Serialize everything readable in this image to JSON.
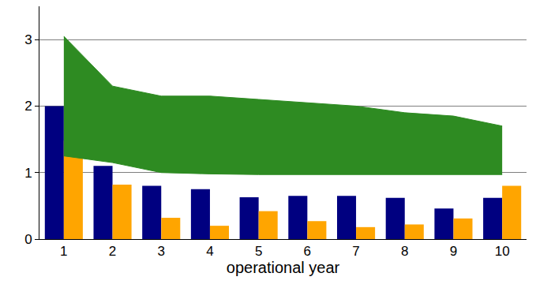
{
  "chart_data": {
    "type": "bar",
    "x_label": "operational year",
    "categories": [
      "1",
      "2",
      "3",
      "4",
      "5",
      "6",
      "7",
      "8",
      "9",
      "10"
    ],
    "series": [
      {
        "color": "#000080",
        "values": [
          2.0,
          1.1,
          0.8,
          0.75,
          0.63,
          0.65,
          0.65,
          0.62,
          0.46,
          0.62
        ]
      },
      {
        "color": "#ffa500",
        "values": [
          1.48,
          0.82,
          0.32,
          0.2,
          0.42,
          0.27,
          0.18,
          0.22,
          0.31,
          0.8
        ]
      },
      {
        "type": "band",
        "color": "#2e8b22",
        "values": [
          3.05,
          2.3,
          2.15,
          2.15,
          2.1,
          2.05,
          2.0,
          1.9,
          1.85,
          1.7
        ],
        "lower": [
          1.25,
          1.15,
          1.0,
          0.98,
          0.97,
          0.97,
          0.97,
          0.97,
          0.97,
          0.97
        ]
      }
    ],
    "ylim": [
      0,
      3.5
    ],
    "yticks": [
      0,
      1,
      2,
      3
    ],
    "grid": true
  }
}
